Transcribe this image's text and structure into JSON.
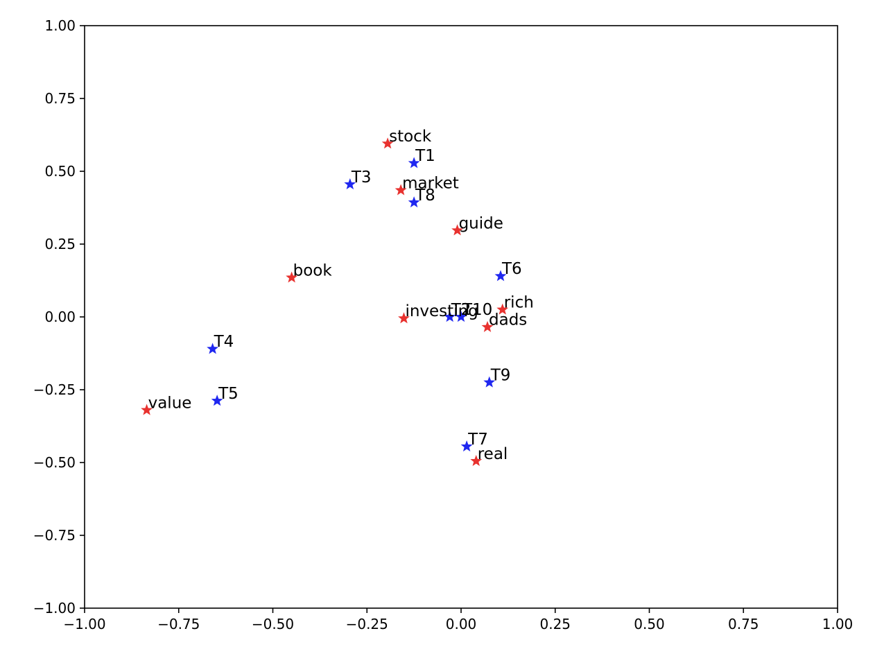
{
  "chart_data": {
    "type": "scatter",
    "title": "",
    "xlabel": "",
    "ylabel": "",
    "xlim": [
      -1.0,
      1.0
    ],
    "ylim": [
      -1.0,
      1.0
    ],
    "grid": false,
    "legend": "none",
    "marker": "star",
    "x_ticks": [
      "−1.00",
      "−0.75",
      "−0.50",
      "−0.25",
      "0.00",
      "0.25",
      "0.50",
      "0.75",
      "1.00"
    ],
    "y_ticks": [
      "1.00",
      "0.75",
      "0.50",
      "0.25",
      "0.00",
      "−0.25",
      "−0.50",
      "−0.75",
      "−1.00"
    ],
    "series": [
      {
        "color": "#e8322f",
        "points": [
          {
            "label": "stock",
            "x": -0.195,
            "y": 0.595
          },
          {
            "label": "market",
            "x": -0.16,
            "y": 0.435
          },
          {
            "label": "guide",
            "x": -0.01,
            "y": 0.297
          },
          {
            "label": "book",
            "x": -0.45,
            "y": 0.135
          },
          {
            "label": "investing",
            "x": -0.152,
            "y": -0.005
          },
          {
            "label": "rich",
            "x": 0.11,
            "y": 0.025
          },
          {
            "label": "dads",
            "x": 0.07,
            "y": -0.035
          },
          {
            "label": "value",
            "x": -0.835,
            "y": -0.32
          },
          {
            "label": "real",
            "x": 0.04,
            "y": -0.495
          }
        ]
      },
      {
        "color": "#1f27f0",
        "points": [
          {
            "label": "T1",
            "x": -0.125,
            "y": 0.528
          },
          {
            "label": "T3",
            "x": -0.295,
            "y": 0.455
          },
          {
            "label": "T8",
            "x": -0.125,
            "y": 0.393
          },
          {
            "label": "T6",
            "x": 0.105,
            "y": 0.14
          },
          {
            "label": "T2",
            "x": -0.03,
            "y": 0.0
          },
          {
            "label": "T10",
            "x": 0.0,
            "y": 0.0
          },
          {
            "label": "T4",
            "x": -0.66,
            "y": -0.11
          },
          {
            "label": "T9",
            "x": 0.075,
            "y": -0.225
          },
          {
            "label": "T5",
            "x": -0.648,
            "y": -0.288
          },
          {
            "label": "T7",
            "x": 0.015,
            "y": -0.445
          }
        ]
      }
    ]
  }
}
